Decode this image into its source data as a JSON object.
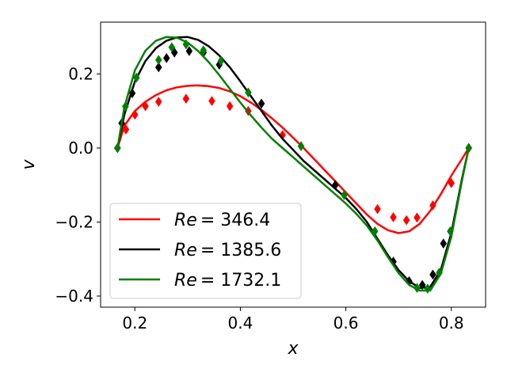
{
  "chart_data": {
    "type": "line",
    "title": "",
    "xlabel": "x",
    "ylabel": "v",
    "xlim": [
      0.135,
      0.865
    ],
    "ylim": [
      -0.43,
      0.34
    ],
    "xticks": [
      0.2,
      0.4,
      0.6,
      0.8
    ],
    "xtick_labels": [
      "0.2",
      "0.4",
      "0.6",
      "0.8"
    ],
    "yticks": [
      -0.4,
      -0.2,
      0.0,
      0.2
    ],
    "ytick_labels": [
      "−0.4",
      "−0.2",
      "0.0",
      "0.2"
    ],
    "grid": false,
    "legend_position": "lower-left",
    "series": [
      {
        "name": "Re = 346.4",
        "legend_prefix": "Re",
        "legend_value": "= 346.4",
        "color": "#ff0000",
        "line_x": [
          0.167,
          0.18,
          0.2,
          0.22,
          0.24,
          0.26,
          0.28,
          0.3,
          0.32,
          0.34,
          0.36,
          0.38,
          0.4,
          0.42,
          0.44,
          0.46,
          0.48,
          0.5,
          0.52,
          0.54,
          0.56,
          0.58,
          0.6,
          0.62,
          0.64,
          0.66,
          0.68,
          0.7,
          0.72,
          0.74,
          0.76,
          0.78,
          0.8,
          0.82,
          0.833
        ],
        "line_y": [
          0.0,
          0.06,
          0.1,
          0.125,
          0.143,
          0.156,
          0.164,
          0.168,
          0.169,
          0.167,
          0.162,
          0.153,
          0.14,
          0.123,
          0.103,
          0.08,
          0.055,
          0.028,
          0.0,
          -0.03,
          -0.06,
          -0.09,
          -0.12,
          -0.15,
          -0.18,
          -0.205,
          -0.222,
          -0.23,
          -0.225,
          -0.205,
          -0.17,
          -0.125,
          -0.075,
          -0.03,
          0.0
        ],
        "markers_x": [
          0.167,
          0.183,
          0.2,
          0.22,
          0.245,
          0.297,
          0.346,
          0.38,
          0.415,
          0.48,
          0.66,
          0.69,
          0.715,
          0.735,
          0.765,
          0.8,
          0.833
        ],
        "markers_y": [
          0.0,
          0.05,
          0.09,
          0.113,
          0.125,
          0.133,
          0.127,
          0.113,
          0.1,
          0.035,
          -0.165,
          -0.187,
          -0.195,
          -0.188,
          -0.155,
          -0.095,
          0.0
        ]
      },
      {
        "name": "Re = 1385.6",
        "legend_prefix": "Re",
        "legend_value": "= 1385.6",
        "color": "#000000",
        "line_x": [
          0.167,
          0.18,
          0.2,
          0.22,
          0.24,
          0.26,
          0.28,
          0.3,
          0.32,
          0.34,
          0.36,
          0.38,
          0.4,
          0.42,
          0.44,
          0.46,
          0.48,
          0.5,
          0.52,
          0.54,
          0.56,
          0.58,
          0.6,
          0.62,
          0.64,
          0.66,
          0.68,
          0.7,
          0.72,
          0.74,
          0.76,
          0.78,
          0.8,
          0.82,
          0.833
        ],
        "line_y": [
          0.0,
          0.09,
          0.18,
          0.235,
          0.27,
          0.29,
          0.299,
          0.3,
          0.292,
          0.275,
          0.25,
          0.218,
          0.18,
          0.14,
          0.1,
          0.06,
          0.025,
          -0.005,
          -0.035,
          -0.06,
          -0.085,
          -0.11,
          -0.135,
          -0.165,
          -0.2,
          -0.245,
          -0.29,
          -0.33,
          -0.36,
          -0.378,
          -0.375,
          -0.33,
          -0.23,
          -0.085,
          0.0
        ],
        "markers_x": [
          0.167,
          0.175,
          0.195,
          0.245,
          0.26,
          0.275,
          0.303,
          0.33,
          0.36,
          0.44,
          0.58,
          0.69,
          0.72,
          0.745,
          0.765,
          0.785,
          0.833
        ],
        "markers_y": [
          0.0,
          0.067,
          0.148,
          0.218,
          0.243,
          0.258,
          0.262,
          0.258,
          0.225,
          0.12,
          -0.1,
          -0.307,
          -0.36,
          -0.37,
          -0.342,
          -0.258,
          0.0
        ]
      },
      {
        "name": "Re = 1732.1",
        "legend_prefix": "Re",
        "legend_value": "= 1732.1",
        "color": "#008000",
        "line_x": [
          0.167,
          0.18,
          0.2,
          0.22,
          0.24,
          0.26,
          0.28,
          0.3,
          0.32,
          0.34,
          0.36,
          0.38,
          0.4,
          0.42,
          0.44,
          0.46,
          0.48,
          0.5,
          0.52,
          0.54,
          0.56,
          0.58,
          0.6,
          0.62,
          0.64,
          0.66,
          0.68,
          0.7,
          0.72,
          0.74,
          0.76,
          0.78,
          0.8,
          0.82,
          0.833
        ],
        "line_y": [
          0.0,
          0.11,
          0.21,
          0.263,
          0.29,
          0.3,
          0.298,
          0.285,
          0.262,
          0.232,
          0.197,
          0.16,
          0.123,
          0.088,
          0.055,
          0.025,
          0.0,
          -0.025,
          -0.05,
          -0.075,
          -0.1,
          -0.125,
          -0.15,
          -0.178,
          -0.21,
          -0.25,
          -0.295,
          -0.338,
          -0.37,
          -0.385,
          -0.385,
          -0.34,
          -0.24,
          -0.09,
          0.0
        ],
        "markers_x": [
          0.167,
          0.182,
          0.203,
          0.245,
          0.27,
          0.297,
          0.33,
          0.363,
          0.415,
          0.515,
          0.597,
          0.655,
          0.735,
          0.755,
          0.777,
          0.798,
          0.833
        ],
        "markers_y": [
          0.0,
          0.112,
          0.19,
          0.238,
          0.272,
          0.28,
          0.264,
          0.235,
          0.15,
          0.005,
          -0.127,
          -0.225,
          -0.378,
          -0.38,
          -0.337,
          -0.225,
          0.0
        ]
      }
    ]
  }
}
